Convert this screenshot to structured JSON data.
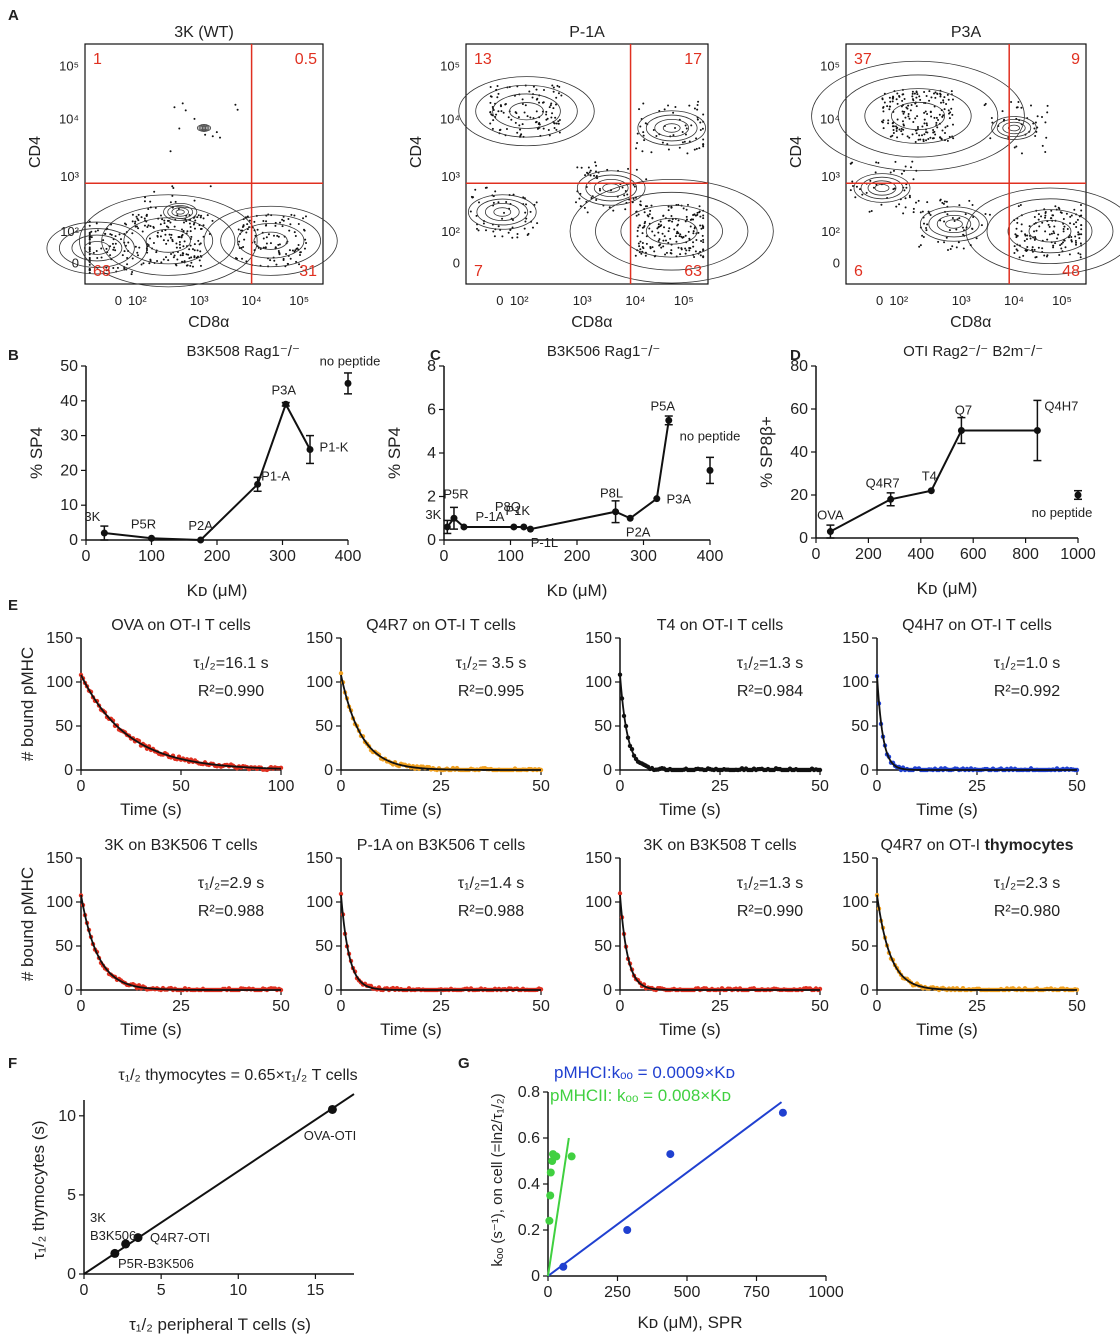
{
  "colors": {
    "gate": "#e03020",
    "ovaFit": "#e03020",
    "orange": "#f0a020",
    "blue": "#2040d0",
    "green": "#40d040",
    "black": "#111111"
  },
  "panelA": {
    "label": "A",
    "ylabel": "CD4",
    "xlabel": "CD8α",
    "ticksY": [
      "10⁵",
      "10⁴",
      "10³",
      "10²",
      "0"
    ],
    "ticksX": [
      "0",
      "10²",
      "10³",
      "10⁴",
      "10⁵"
    ],
    "plots": [
      {
        "title": "3K (WT)",
        "tl": "1",
        "tr": "0.5",
        "bl": "68",
        "br": "31"
      },
      {
        "title": "P-1A",
        "tl": "13",
        "tr": "17",
        "bl": "7",
        "br": "63"
      },
      {
        "title": "P3A",
        "tl": "37",
        "tr": "9",
        "bl": "6",
        "br": "48"
      }
    ]
  },
  "chart_data": [
    {
      "panel": "B",
      "type": "line",
      "title": "B3K508 Rag1⁻/⁻",
      "xlabel": "Kᴅ (μM)",
      "ylabel": "% SP4",
      "xlim": [
        0,
        400
      ],
      "ylim": [
        0,
        50
      ],
      "xticks": [
        0,
        100,
        200,
        300,
        400
      ],
      "yticks": [
        0,
        10,
        20,
        30,
        40,
        50
      ],
      "points": [
        {
          "label": "3K",
          "x": 28,
          "y": 2,
          "err": 2
        },
        {
          "label": "P5R",
          "x": 100,
          "y": 0.5,
          "err": 0
        },
        {
          "label": "P2A",
          "x": 175,
          "y": 0,
          "err": 0
        },
        {
          "label": "P1-A",
          "x": 262,
          "y": 16,
          "err": 2
        },
        {
          "label": "P3A",
          "x": 305,
          "y": 39,
          "err": 0.5
        },
        {
          "label": "P1-K",
          "x": 342,
          "y": 26,
          "err": 4
        }
      ],
      "extra": {
        "label": "no peptide",
        "x": 400,
        "y": 45,
        "err": 3
      }
    },
    {
      "panel": "C",
      "type": "line",
      "title": "B3K506 Rag1⁻/⁻",
      "xlabel": "Kᴅ (μM)",
      "ylabel": "% SP4",
      "xlim": [
        0,
        400
      ],
      "ylim": [
        0,
        8
      ],
      "xticks": [
        0,
        100,
        200,
        300,
        400
      ],
      "yticks": [
        0,
        2,
        4,
        6,
        8
      ],
      "points": [
        {
          "label": "3K",
          "x": 5,
          "y": 0.6,
          "err": 0.3
        },
        {
          "label": "P5R",
          "x": 15,
          "y": 1.0,
          "err": 0.5
        },
        {
          "label": "P-1A",
          "x": 30,
          "y": 0.6,
          "err": 0
        },
        {
          "label": "P8Q",
          "x": 105,
          "y": 0.6,
          "err": 0
        },
        {
          "label": "P1K",
          "x": 120,
          "y": 0.6,
          "err": 0
        },
        {
          "label": "P-1L",
          "x": 130,
          "y": 0.5,
          "err": 0
        },
        {
          "label": "P8L",
          "x": 258,
          "y": 1.3,
          "err": 0.5
        },
        {
          "label": "P2A",
          "x": 280,
          "y": 1.0,
          "err": 0
        },
        {
          "label": "P3A",
          "x": 320,
          "y": 1.9,
          "err": 0
        },
        {
          "label": "P5A",
          "x": 338,
          "y": 5.5,
          "err": 0.2
        }
      ],
      "extra": {
        "label": "no peptide",
        "x": 400,
        "y": 3.2,
        "err": 0.6
      }
    },
    {
      "panel": "D",
      "type": "line",
      "title": "OTI Rag2⁻/⁻ B2m⁻/⁻",
      "xlabel": "Kᴅ (μM)",
      "ylabel": "% SP8β+",
      "xlim": [
        0,
        1000
      ],
      "ylim": [
        0,
        80
      ],
      "xticks": [
        0,
        200,
        400,
        600,
        800,
        1000
      ],
      "yticks": [
        0,
        20,
        40,
        60,
        80
      ],
      "points": [
        {
          "label": "OVA",
          "x": 55,
          "y": 3,
          "err": 3
        },
        {
          "label": "Q4R7",
          "x": 285,
          "y": 18,
          "err": 3
        },
        {
          "label": "T4",
          "x": 440,
          "y": 22,
          "err": 0
        },
        {
          "label": "Q7",
          "x": 555,
          "y": 50,
          "err": 6
        },
        {
          "label": "Q4H7",
          "x": 845,
          "y": 50,
          "err": 14
        }
      ],
      "extra": {
        "label": "no peptide",
        "x": 1000,
        "y": 20,
        "err": 2
      }
    },
    {
      "panel": "E",
      "type": "scatter",
      "ylabel": "# bound pMHC",
      "xlabel": "Time (s)",
      "subplots": [
        {
          "title": "OVA on OT-I T cells",
          "tau": "τ₁/₂=16.1 s",
          "r2": "R²=0.990",
          "tauValue": 16.1,
          "r2Value": 0.99,
          "xmax": 100,
          "colorKey": "gate"
        },
        {
          "title": "Q4R7 on OT-I T cells",
          "tau": "τ₁/₂= 3.5 s",
          "r2": "R²=0.995",
          "tauValue": 3.5,
          "r2Value": 0.995,
          "xmax": 50,
          "colorKey": "orange"
        },
        {
          "title": "T4 on OT-I T cells",
          "tau": "τ₁/₂=1.3 s",
          "r2": "R²=0.984",
          "tauValue": 1.3,
          "r2Value": 0.984,
          "xmax": 50,
          "colorKey": "black"
        },
        {
          "title": "Q4H7 on OT-I T cells",
          "tau": "τ₁/₂=1.0 s",
          "r2": "R²=0.992",
          "tauValue": 1.0,
          "r2Value": 0.992,
          "xmax": 50,
          "colorKey": "blue"
        },
        {
          "title": "3K on B3K506 T cells",
          "tau": "τ₁/₂=2.9 s",
          "r2": "R²=0.988",
          "tauValue": 2.9,
          "r2Value": 0.988,
          "xmax": 50,
          "colorKey": "gate"
        },
        {
          "title": "P-1A on B3K506 T cells",
          "tau": "τ₁/₂=1.4 s",
          "r2": "R²=0.988",
          "tauValue": 1.4,
          "r2Value": 0.988,
          "xmax": 50,
          "colorKey": "gate"
        },
        {
          "title": "3K on B3K508 T cells",
          "tau": "τ₁/₂=1.3 s",
          "r2": "R²=0.990",
          "tauValue": 1.3,
          "r2Value": 0.99,
          "xmax": 50,
          "colorKey": "gate"
        },
        {
          "title": "Q4R7 on OT-I ",
          "titleBold": "thymocytes",
          "tau": "τ₁/₂=2.3 s",
          "r2": "R²=0.980",
          "tauValue": 2.3,
          "r2Value": 0.98,
          "xmax": 50,
          "colorKey": "orange"
        }
      ]
    },
    {
      "panel": "F",
      "type": "scatter",
      "title": "τ₁/₂ thymocytes = 0.65×τ₁/₂ T cells",
      "xlabel": "τ₁/₂ peripheral T cells (s)",
      "ylabel": "τ₁/₂ thymocytes (s)",
      "xlim": [
        0,
        17.5
      ],
      "ylim": [
        0,
        11
      ],
      "xticks": [
        0,
        5,
        10,
        15
      ],
      "yticks": [
        0,
        5,
        10
      ],
      "slope": 0.65,
      "points": [
        {
          "x": 2.0,
          "y": 1.3
        },
        {
          "x": 2.7,
          "y": 1.9
        },
        {
          "x": 3.5,
          "y": 2.3
        },
        {
          "x": 16.1,
          "y": 10.4
        }
      ],
      "annotations": [
        "OVA-OTI",
        "3K",
        "B3K506",
        "Q4R7-OTI",
        "P5R-B3K506"
      ]
    },
    {
      "panel": "G",
      "type": "scatter",
      "xlabel": "Kᴅ (μM), SPR",
      "ylabel": "kₒₒ (s⁻¹), on cell (=ln2/τ₁/₂)",
      "xlim": [
        0,
        1000
      ],
      "ylim": [
        0,
        0.8
      ],
      "xticks": [
        0,
        250,
        500,
        750,
        1000
      ],
      "yticks": [
        0,
        0.2,
        0.4,
        0.6,
        0.8
      ],
      "series": [
        {
          "name": "pMHCI:kₒₒ = 0.0009×Kᴅ",
          "colorKey": "blue",
          "slope": 0.0009,
          "points": [
            {
              "x": 55,
              "y": 0.04
            },
            {
              "x": 285,
              "y": 0.2
            },
            {
              "x": 440,
              "y": 0.53
            },
            {
              "x": 845,
              "y": 0.71
            }
          ]
        },
        {
          "name": "pMHCII: kₒₒ = 0.008×Kᴅ",
          "colorKey": "green",
          "slope": 0.008,
          "points": [
            {
              "x": 5,
              "y": 0.24
            },
            {
              "x": 8,
              "y": 0.35
            },
            {
              "x": 10,
              "y": 0.45
            },
            {
              "x": 15,
              "y": 0.5
            },
            {
              "x": 18,
              "y": 0.53
            },
            {
              "x": 30,
              "y": 0.52
            },
            {
              "x": 85,
              "y": 0.52
            }
          ]
        }
      ]
    }
  ],
  "panelLabels": {
    "B": "B",
    "C": "C",
    "D": "D",
    "E": "E",
    "F": "F",
    "G": "G"
  }
}
